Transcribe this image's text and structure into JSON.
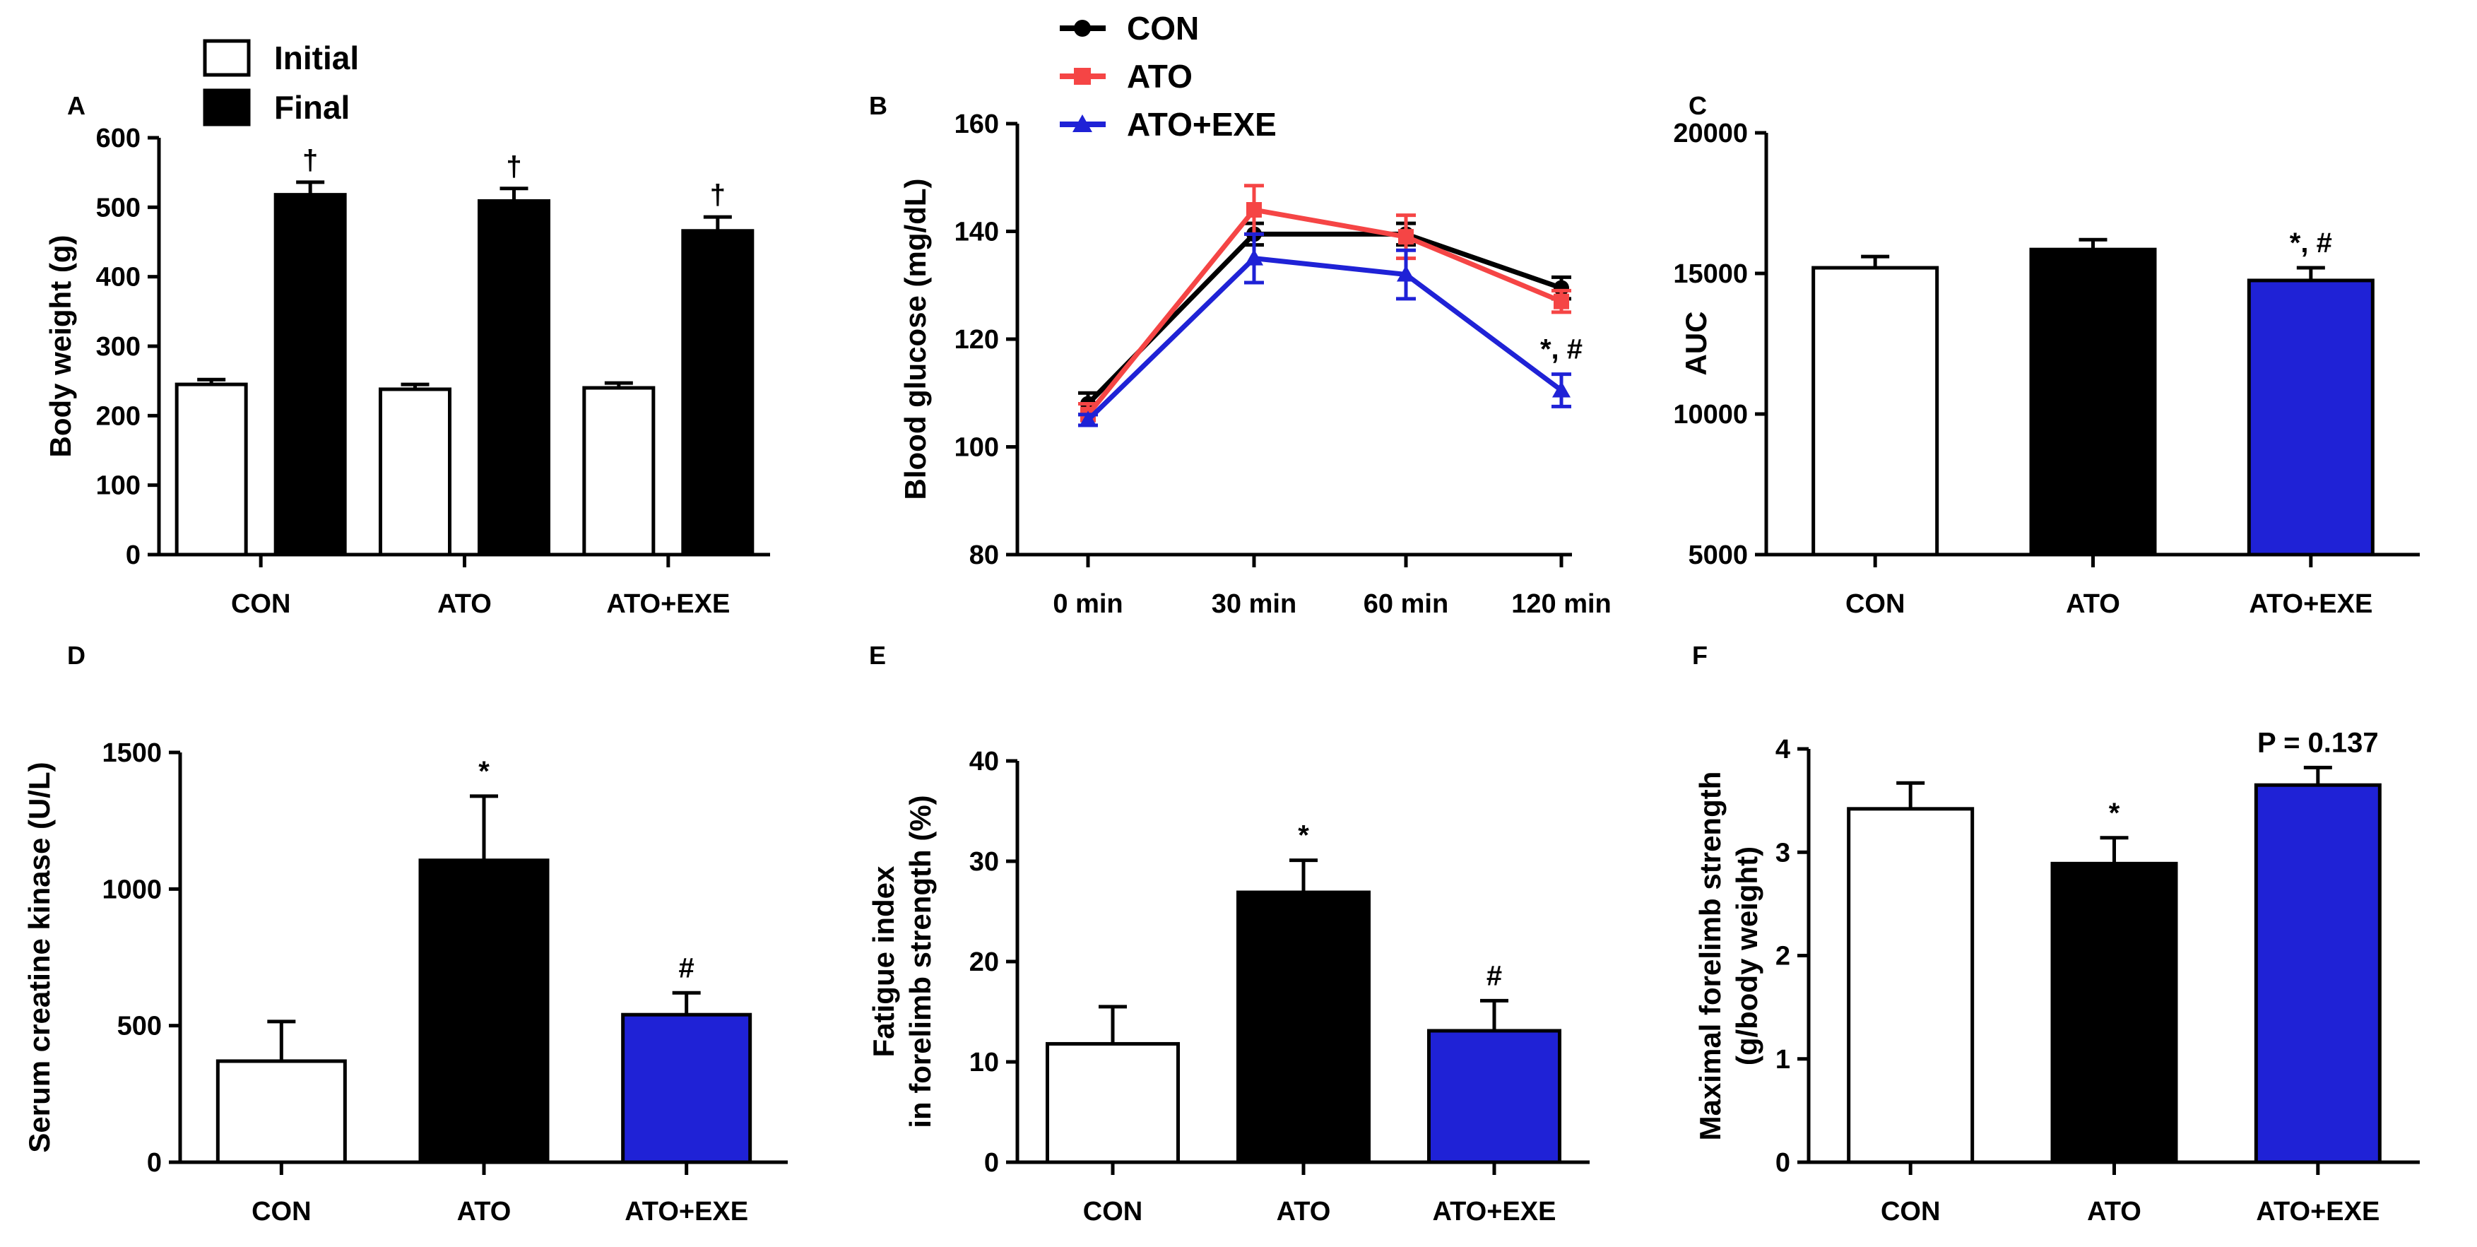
{
  "chart_data": [
    {
      "panel": "A",
      "type": "bar",
      "ylabel": "Body weight (g)",
      "ylim": [
        0,
        600
      ],
      "yticks": [
        0,
        100,
        200,
        300,
        400,
        500,
        600
      ],
      "categories": [
        "CON",
        "ATO",
        "ATO+EXE"
      ],
      "series": [
        {
          "name": "Initial",
          "color": "#ffffff",
          "values": [
            245,
            238,
            240
          ],
          "errors": [
            7,
            7,
            7
          ]
        },
        {
          "name": "Final",
          "color": "#000000",
          "values": [
            518,
            509,
            466
          ],
          "errors": [
            18,
            18,
            20
          ]
        }
      ],
      "annotations": [
        {
          "category": 0,
          "series": 1,
          "text": "†"
        },
        {
          "category": 1,
          "series": 1,
          "text": "†"
        },
        {
          "category": 2,
          "series": 1,
          "text": "†"
        }
      ],
      "legend": "top-left"
    },
    {
      "panel": "B",
      "type": "line",
      "ylabel": "Blood glucose (mg/dL)",
      "ylim": [
        80,
        160
      ],
      "yticks": [
        80,
        100,
        120,
        140,
        160
      ],
      "categories": [
        "0 min",
        "30 min",
        "60 min",
        "120 min"
      ],
      "series": [
        {
          "name": "CON",
          "color": "#000000",
          "marker": "circle",
          "values": [
            108,
            139.5,
            139.5,
            129.5
          ],
          "errors": [
            2,
            2,
            2,
            2
          ]
        },
        {
          "name": "ATO",
          "color": "#f54545",
          "marker": "square",
          "values": [
            106,
            144,
            139,
            127
          ],
          "errors": [
            2,
            4.5,
            4,
            2
          ]
        },
        {
          "name": "ATO+EXE",
          "color": "#1f22d6",
          "marker": "triangle",
          "values": [
            105,
            135,
            132,
            110.5
          ],
          "errors": [
            1,
            4.5,
            4.5,
            3
          ]
        }
      ],
      "annotations": [
        {
          "category": 3,
          "text": "*, #"
        }
      ],
      "legend": "top"
    },
    {
      "panel": "C",
      "type": "bar",
      "ylabel": "AUC",
      "ylim": [
        5000,
        20000
      ],
      "yticks": [
        5000,
        10000,
        15000,
        20000
      ],
      "categories": [
        "CON",
        "ATO",
        "ATO+EXE"
      ],
      "colors": [
        "#ffffff",
        "#000000",
        "#1f22d6"
      ],
      "values": [
        15200,
        15850,
        14750
      ],
      "errors": [
        400,
        350,
        450
      ],
      "annotations": [
        {
          "category": 2,
          "text": "*, #"
        }
      ]
    },
    {
      "panel": "D",
      "type": "bar",
      "ylabel": "Serum creatine kinase (U/L)",
      "ylim": [
        0,
        1500
      ],
      "yticks": [
        0,
        500,
        1000,
        1500
      ],
      "categories": [
        "CON",
        "ATO",
        "ATO+EXE"
      ],
      "colors": [
        "#ffffff",
        "#000000",
        "#1f22d6"
      ],
      "values": [
        370,
        1105,
        540
      ],
      "errors": [
        145,
        235,
        80
      ],
      "annotations": [
        {
          "category": 1,
          "text": "*"
        },
        {
          "category": 2,
          "text": "#"
        }
      ]
    },
    {
      "panel": "E",
      "type": "bar",
      "ylabel": [
        "Fatigue index",
        "in forelimb strength (%)"
      ],
      "ylim": [
        0,
        40
      ],
      "yticks": [
        0,
        10,
        20,
        30,
        40
      ],
      "categories": [
        "CON",
        "ATO",
        "ATO+EXE"
      ],
      "colors": [
        "#ffffff",
        "#000000",
        "#1f22d6"
      ],
      "values": [
        11.8,
        26.9,
        13.1
      ],
      "errors": [
        3.7,
        3.2,
        3.0
      ],
      "annotations": [
        {
          "category": 1,
          "text": "*"
        },
        {
          "category": 2,
          "text": "#"
        }
      ]
    },
    {
      "panel": "F",
      "type": "bar",
      "ylabel": [
        "Maximal forelimb strength",
        "(g/body weight)"
      ],
      "ylim": [
        0,
        4
      ],
      "yticks": [
        0,
        1,
        2,
        3,
        4
      ],
      "categories": [
        "CON",
        "ATO",
        "ATO+EXE"
      ],
      "colors": [
        "#ffffff",
        "#000000",
        "#1f22d6"
      ],
      "values": [
        3.42,
        2.89,
        3.65
      ],
      "errors": [
        0.25,
        0.25,
        0.17
      ],
      "annotations": [
        {
          "category": 1,
          "text": "*"
        },
        {
          "category": 2,
          "text": "P = 0.137"
        }
      ]
    }
  ]
}
